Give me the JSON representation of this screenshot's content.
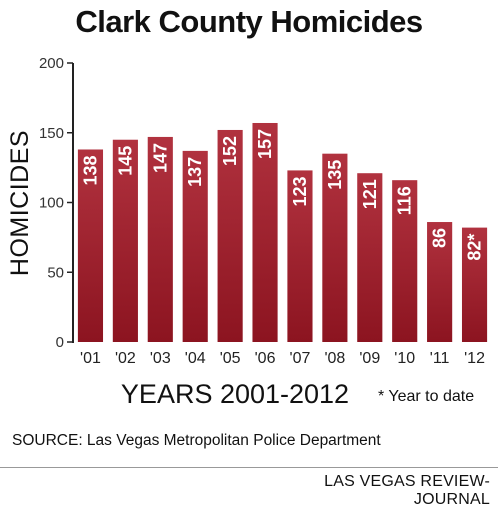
{
  "chart_data": {
    "type": "bar",
    "title": "Clark County Homicides",
    "ylabel": "HOMICIDES",
    "xlabel": "YEARS 2001-2012",
    "categories": [
      "'01",
      "'02",
      "'03",
      "'04",
      "'05",
      "'06",
      "'07",
      "'08",
      "'09",
      "'10",
      "'11",
      "'12"
    ],
    "values": [
      138,
      145,
      147,
      137,
      152,
      157,
      123,
      135,
      121,
      116,
      86,
      82
    ],
    "value_labels": [
      "138",
      "145",
      "147",
      "137",
      "152",
      "157",
      "123",
      "135",
      "121",
      "116",
      "86",
      "82*"
    ],
    "yticks": [
      0,
      50,
      100,
      150,
      200
    ],
    "ylim": [
      0,
      200
    ],
    "grid": false,
    "bar_color_top": "#b1323f",
    "bar_color_bottom": "#8c1420",
    "label_color": "#ffffff"
  },
  "note": "* Year to date",
  "source": "SOURCE: Las Vegas Metropolitan Police Department",
  "credit": "LAS VEGAS REVIEW-JOURNAL"
}
